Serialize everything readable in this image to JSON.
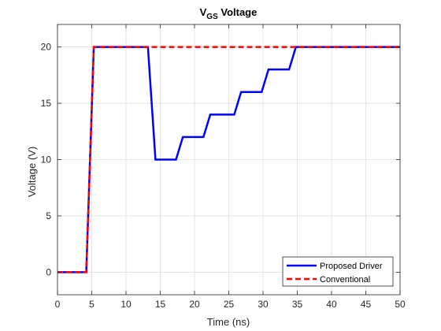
{
  "chart_data": {
    "type": "line",
    "title": "V_GS Voltage",
    "title_main": "V",
    "title_sub": "GS",
    "title_rest": " Voltage",
    "xlabel": "Time (ns)",
    "ylabel": "Voltage (V)",
    "xlim": [
      0,
      50
    ],
    "ylim": [
      -2,
      22
    ],
    "xticks": [
      0,
      5,
      10,
      15,
      20,
      25,
      30,
      35,
      40,
      45,
      50
    ],
    "yticks": [
      0,
      5,
      10,
      15,
      20
    ],
    "grid": true,
    "legend_position": "bottom-right",
    "series": [
      {
        "name": "Proposed Driver",
        "color": "#0000ff",
        "style": "solid",
        "x": [
          0,
          4.2,
          5.3,
          13.2,
          14.3,
          17.3,
          18.3,
          21.3,
          22.3,
          25.8,
          26.8,
          29.8,
          30.8,
          33.8,
          34.8,
          50
        ],
        "y": [
          0,
          0,
          20,
          20,
          10,
          10,
          12,
          12,
          14,
          14,
          16,
          16,
          18,
          18,
          20,
          20
        ]
      },
      {
        "name": "Conventional",
        "color": "#ff0000",
        "style": "dashed",
        "x": [
          0,
          4.2,
          5.3,
          50
        ],
        "y": [
          0,
          0,
          20,
          20
        ]
      }
    ]
  }
}
